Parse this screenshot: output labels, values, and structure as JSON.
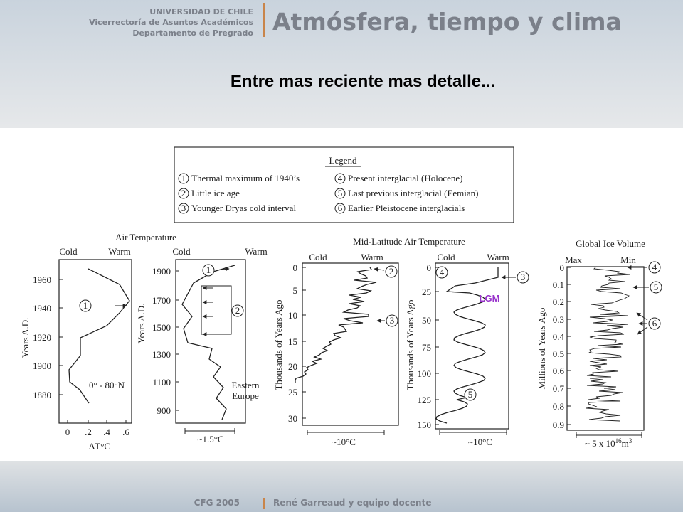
{
  "header": {
    "university": "UNIVERSIDAD DE CHILE",
    "office": "Vicerrectoría de Asuntos Académicos",
    "department": "Departamento de Pregrado",
    "course": "Atmósfera, tiempo y clima"
  },
  "slide_title": "Entre mas reciente mas detalle...",
  "legend": {
    "title": "Legend",
    "items": [
      {
        "marker": "1",
        "text": "Thermal maximum of 1940’s"
      },
      {
        "marker": "2",
        "text": "Little ice age"
      },
      {
        "marker": "3",
        "text": "Younger Dryas cold interval"
      },
      {
        "marker": "4",
        "text": "Present interglacial (Holocene)"
      },
      {
        "marker": "5",
        "text": "Last previous interglacial (Eemian)"
      },
      {
        "marker": "6",
        "text": "Earlier Pleistocene interglacials"
      }
    ]
  },
  "group_titles": [
    "Air Temperature",
    "Mid-Latitude Air Temperature",
    "Global Ice Volume"
  ],
  "panels": [
    {
      "left": "Cold",
      "right": "Warm",
      "ylabel": "Years A.D.",
      "yticks": [
        "1960",
        "1940",
        "1920",
        "1900",
        "1880"
      ],
      "xticks": [
        "0",
        ".2",
        ".4",
        ".6"
      ],
      "xlabel": "ΔT°C",
      "notes": [
        "0° - 80°N"
      ],
      "markers": [
        "1"
      ]
    },
    {
      "left": "Cold",
      "right": "Warm",
      "ylabel": "Years A.D.",
      "yticks": [
        "1900",
        "1700",
        "1500",
        "1300",
        "1100",
        "900"
      ],
      "scale": [
        "~1.5°C"
      ],
      "notes": [
        "Eastern",
        "Europe"
      ],
      "markers": [
        "1",
        "2"
      ]
    },
    {
      "left": "Cold",
      "right": "Warm",
      "ylabel": "Thousands of Years Ago",
      "yticks": [
        "0",
        "5",
        "10",
        "15",
        "20",
        "25",
        "30"
      ],
      "scale": [
        "~10°C"
      ],
      "markers": [
        "2",
        "3"
      ]
    },
    {
      "left": "Cold",
      "right": "Warm",
      "ylabel": "Thousands of Years Ago",
      "yticks": [
        "0",
        "25",
        "50",
        "75",
        "100",
        "125",
        "150"
      ],
      "scale": [
        "~10°C"
      ],
      "markers": [
        "4",
        "3",
        "5"
      ]
    },
    {
      "left": "Max",
      "right": "Min",
      "ylabel": "Millions of Years Ago",
      "yticks": [
        "0",
        "0.1",
        "0.2",
        "0.3",
        "0.4",
        "0.5",
        "0.6",
        "0.7",
        "0.8",
        "0.9"
      ],
      "scale": [
        "~ 5 x 10",
        "16",
        "m",
        "3"
      ],
      "markers": [
        "4",
        "5",
        "6"
      ]
    }
  ],
  "annotation": "LGM",
  "footer": {
    "left": "CFG 2005",
    "right": "René Garreaud y equipo docente"
  }
}
